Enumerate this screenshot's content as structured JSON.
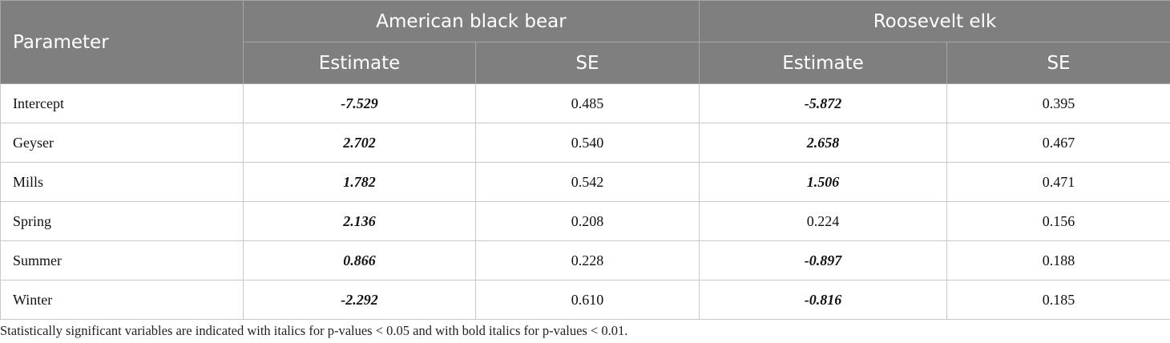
{
  "header": {
    "parameter": "Parameter",
    "group1": "American black bear",
    "group2": "Roosevelt elk",
    "estimate": "Estimate",
    "se": "SE"
  },
  "rows": [
    {
      "name": "Intercept",
      "bear_est": "-7.529",
      "bear_se": "0.485",
      "elk_est": "-5.872",
      "elk_se": "0.395"
    },
    {
      "name": "Geyser",
      "bear_est": "2.702",
      "bear_se": "0.540",
      "elk_est": "2.658",
      "elk_se": "0.467"
    },
    {
      "name": "Mills",
      "bear_est": "1.782",
      "bear_se": "0.542",
      "elk_est": "1.506",
      "elk_se": "0.471"
    },
    {
      "name": "Spring",
      "bear_est": "2.136",
      "bear_se": "0.208",
      "elk_est": "0.224",
      "elk_se": "0.156"
    },
    {
      "name": "Summer",
      "bear_est": "0.866",
      "bear_se": "0.228",
      "elk_est": "-0.897",
      "elk_se": "0.188"
    },
    {
      "name": "Winter",
      "bear_est": "-2.292",
      "bear_se": "0.610",
      "elk_est": "-0.816",
      "elk_se": "0.185"
    }
  ],
  "footnote": "Statistically significant variables are indicated with italics for p-values < 0.05 and with bold italics for p-values < 0.01.",
  "colors": {
    "header_bg": "#7f7f7f",
    "header_text": "#ffffff",
    "grid": "#c8c8c8"
  }
}
